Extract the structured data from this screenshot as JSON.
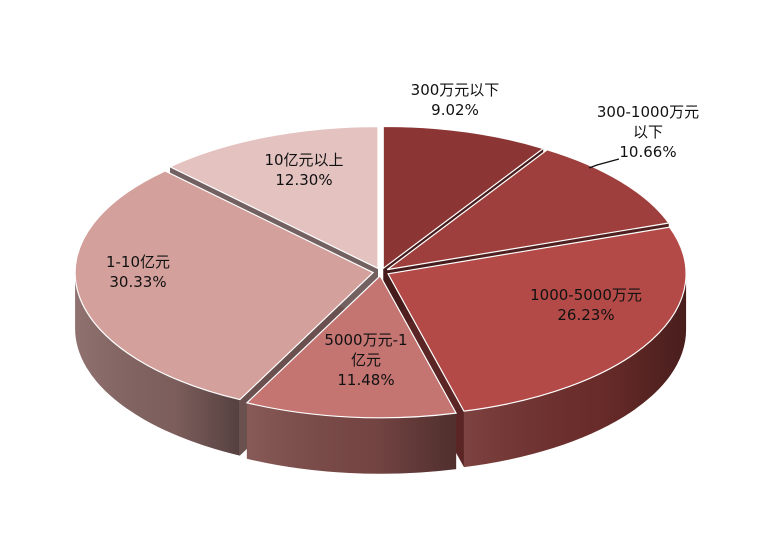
{
  "chart_data": {
    "type": "pie",
    "title": "",
    "slices": [
      {
        "label_lines": [
          "300万元以下"
        ],
        "value_label": "9.02%",
        "value": 9.02,
        "color": "#8c3535"
      },
      {
        "label_lines": [
          "300-1000万元",
          "以下"
        ],
        "value_label": "10.66%",
        "value": 10.66,
        "color": "#9e3f3d"
      },
      {
        "label_lines": [
          "1000-5000万元"
        ],
        "value_label": "26.23%",
        "value": 26.23,
        "color": "#b34a47"
      },
      {
        "label_lines": [
          "5000万元-1",
          "亿元"
        ],
        "value_label": "11.48%",
        "value": 11.48,
        "color": "#c47471"
      },
      {
        "label_lines": [
          "1-10亿元"
        ],
        "value_label": "30.33%",
        "value": 30.33,
        "color": "#d4a09c"
      },
      {
        "label_lines": [
          "10亿元以上"
        ],
        "value_label": "12.30%",
        "value": 12.3,
        "color": "#e3c2c0"
      }
    ],
    "legend": "none",
    "style": "3d-exploded"
  }
}
